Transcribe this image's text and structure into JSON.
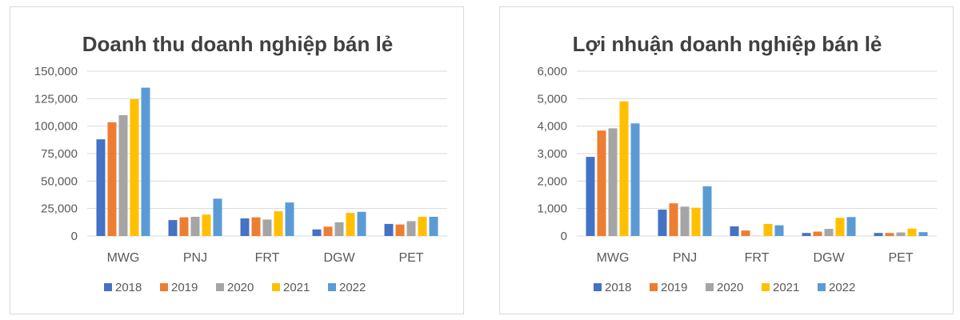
{
  "colors": {
    "2018": "#4472c4",
    "2019": "#ed7d31",
    "2020": "#a5a5a5",
    "2021": "#ffc000",
    "2022": "#5b9bd5",
    "grid": "#d9d9d9",
    "text": "#595959",
    "title": "#404040"
  },
  "chart_data": [
    {
      "type": "bar",
      "title": "Doanh thu doanh nghiệp bán lẻ",
      "categories": [
        "MWG",
        "PNJ",
        "FRT",
        "DGW",
        "PET"
      ],
      "ylim": [
        0,
        150000
      ],
      "yticks": [
        0,
        25000,
        50000,
        75000,
        100000,
        125000,
        150000
      ],
      "ytick_labels": [
        "0",
        "25,000",
        "50,000",
        "75,000",
        "100,000",
        "125,000",
        "150,000"
      ],
      "grid": true,
      "legend_position": "bottom",
      "series": [
        {
          "name": "2018",
          "values": [
            88000,
            14500,
            16000,
            6000,
            11000
          ]
        },
        {
          "name": "2019",
          "values": [
            103500,
            17000,
            17000,
            8500,
            10500
          ]
        },
        {
          "name": "2020",
          "values": [
            110000,
            17500,
            15000,
            12500,
            13500
          ]
        },
        {
          "name": "2021",
          "values": [
            124500,
            19500,
            22500,
            21000,
            17500
          ]
        },
        {
          "name": "2022",
          "values": [
            135000,
            34000,
            30500,
            22000,
            17500
          ]
        }
      ]
    },
    {
      "type": "bar",
      "title": "Lợi nhuận doanh nghiệp bán lẻ",
      "categories": [
        "MWG",
        "PNJ",
        "FRT",
        "DGW",
        "PET"
      ],
      "ylim": [
        0,
        6000
      ],
      "yticks": [
        0,
        1000,
        2000,
        3000,
        4000,
        5000,
        6000
      ],
      "ytick_labels": [
        "0",
        "1,000",
        "2,000",
        "3,000",
        "4,000",
        "5,000",
        "6,000"
      ],
      "grid": true,
      "legend_position": "bottom",
      "series": [
        {
          "name": "2018",
          "values": [
            2880,
            960,
            350,
            110,
            110
          ]
        },
        {
          "name": "2019",
          "values": [
            3840,
            1190,
            200,
            160,
            110
          ]
        },
        {
          "name": "2020",
          "values": [
            3920,
            1070,
            5,
            260,
            130
          ]
        },
        {
          "name": "2021",
          "values": [
            4900,
            1030,
            440,
            660,
            270
          ]
        },
        {
          "name": "2022",
          "values": [
            4100,
            1810,
            390,
            690,
            140
          ]
        }
      ]
    }
  ]
}
